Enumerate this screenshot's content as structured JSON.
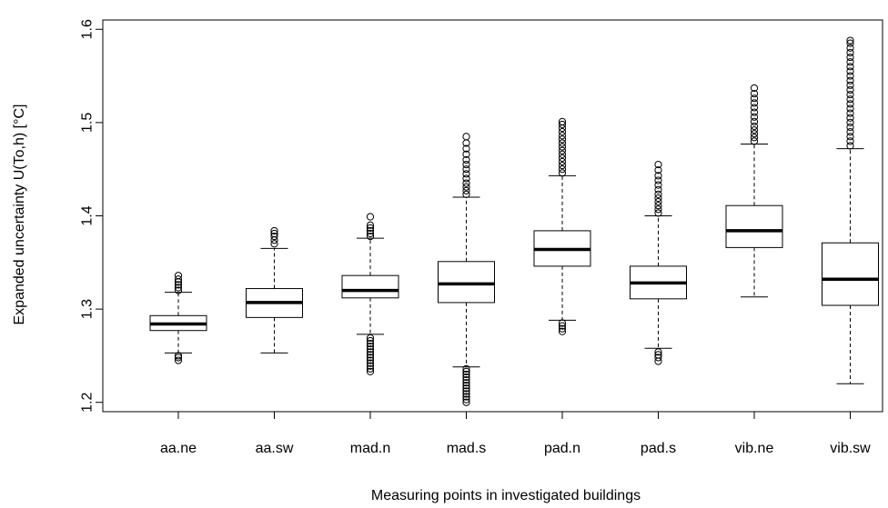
{
  "chart_data": {
    "type": "boxplot",
    "xlabel": "Measuring points in investigated buildings",
    "ylabel": "Expanded uncertainty U(To,h) [°C]",
    "ylim": [
      1.19,
      1.61
    ],
    "yticks": [
      1.2,
      1.3,
      1.4,
      1.5,
      1.6
    ],
    "ytick_labels": [
      "1.2",
      "1.3",
      "1.4",
      "1.5",
      "1.6"
    ],
    "grid": false,
    "categories": [
      "aa.ne",
      "aa.sw",
      "mad.n",
      "mad.s",
      "pad.n",
      "pad.s",
      "vib.ne",
      "vib.sw"
    ],
    "boxes": [
      {
        "name": "aa.ne",
        "whisker_low": 1.253,
        "q1": 1.277,
        "median": 1.284,
        "q3": 1.293,
        "whisker_high": 1.318,
        "outliers_low": [
          1.245,
          1.248,
          1.25
        ],
        "outliers_high": [
          1.32,
          1.323,
          1.326,
          1.329,
          1.332,
          1.336
        ]
      },
      {
        "name": "aa.sw",
        "whisker_low": 1.253,
        "q1": 1.291,
        "median": 1.307,
        "q3": 1.322,
        "whisker_high": 1.365,
        "outliers_low": [],
        "outliers_high": [
          1.37,
          1.374,
          1.378,
          1.381,
          1.384
        ]
      },
      {
        "name": "mad.n",
        "whisker_low": 1.273,
        "q1": 1.312,
        "median": 1.32,
        "q3": 1.336,
        "whisker_high": 1.376,
        "outliers_low": [
          1.233,
          1.236,
          1.239,
          1.242,
          1.245,
          1.248,
          1.251,
          1.254,
          1.257,
          1.26,
          1.263,
          1.266,
          1.269
        ],
        "outliers_high": [
          1.378,
          1.381,
          1.384,
          1.387,
          1.39,
          1.399
        ]
      },
      {
        "name": "mad.s",
        "whisker_low": 1.238,
        "q1": 1.307,
        "median": 1.327,
        "q3": 1.351,
        "whisker_high": 1.42,
        "outliers_low": [
          1.2,
          1.203,
          1.206,
          1.209,
          1.212,
          1.215,
          1.218,
          1.221,
          1.224,
          1.227,
          1.23,
          1.233,
          1.236
        ],
        "outliers_high": [
          1.423,
          1.427,
          1.431,
          1.435,
          1.44,
          1.445,
          1.45,
          1.455,
          1.46,
          1.466,
          1.472,
          1.478,
          1.485
        ]
      },
      {
        "name": "pad.n",
        "whisker_low": 1.288,
        "q1": 1.346,
        "median": 1.364,
        "q3": 1.384,
        "whisker_high": 1.443,
        "outliers_low": [
          1.276,
          1.279,
          1.282,
          1.285
        ],
        "outliers_high": [
          1.446,
          1.45,
          1.454,
          1.458,
          1.462,
          1.466,
          1.47,
          1.474,
          1.478,
          1.482,
          1.486,
          1.49,
          1.494,
          1.498,
          1.501
        ]
      },
      {
        "name": "pad.s",
        "whisker_low": 1.258,
        "q1": 1.311,
        "median": 1.328,
        "q3": 1.346,
        "whisker_high": 1.4,
        "outliers_low": [
          1.244,
          1.248,
          1.251,
          1.254
        ],
        "outliers_high": [
          1.403,
          1.407,
          1.411,
          1.415,
          1.419,
          1.423,
          1.428,
          1.433,
          1.438,
          1.443,
          1.449,
          1.455
        ]
      },
      {
        "name": "vib.ne",
        "whisker_low": 1.313,
        "q1": 1.366,
        "median": 1.384,
        "q3": 1.411,
        "whisker_high": 1.477,
        "outliers_low": [],
        "outliers_high": [
          1.48,
          1.484,
          1.488,
          1.492,
          1.496,
          1.501,
          1.506,
          1.511,
          1.516,
          1.521,
          1.526,
          1.531,
          1.537
        ]
      },
      {
        "name": "vib.sw",
        "whisker_low": 1.22,
        "q1": 1.304,
        "median": 1.332,
        "q3": 1.371,
        "whisker_high": 1.472,
        "outliers_low": [],
        "outliers_high": [
          1.475,
          1.48,
          1.485,
          1.49,
          1.495,
          1.5,
          1.505,
          1.51,
          1.515,
          1.52,
          1.525,
          1.53,
          1.535,
          1.54,
          1.545,
          1.55,
          1.555,
          1.56,
          1.565,
          1.57,
          1.575,
          1.58,
          1.585,
          1.588
        ]
      }
    ]
  }
}
